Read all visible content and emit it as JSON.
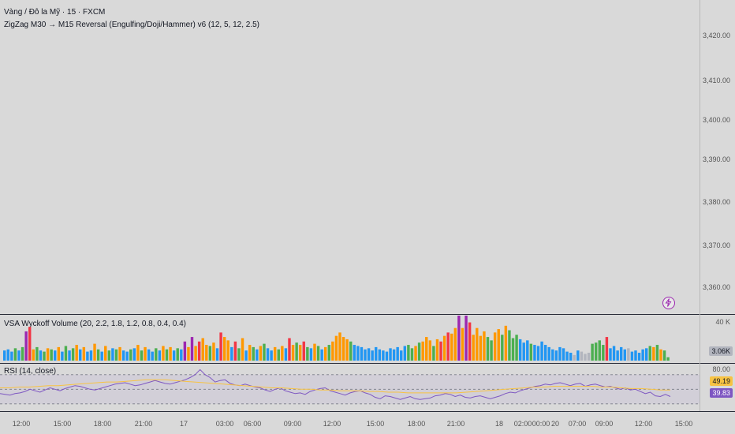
{
  "header": {
    "symbol_line": "Vàng / Đô la Mỹ · 15 · FXCM",
    "indicator_line": "ZigZag M30 → M15 Reversal (Engulfing/Doji/Hammer) v6 (12, 5, 12, 2.5)"
  },
  "price_axis": [
    "3,420.00",
    "3,410.00",
    "3,400.00",
    "3,390.00",
    "3,380.00",
    "3,370.00",
    "3,360.00"
  ],
  "volume_pane": {
    "title": "VSA Wyckoff Volume (20, 2.2, 1.8, 1.2, 0.8, 0.4, 0.4)",
    "axis_label": "40 K",
    "last_value": "3.06K",
    "colors": {
      "blue": "#2196f3",
      "green": "#4caf50",
      "orange": "#ff9800",
      "red": "#f23645",
      "purple": "#9c27b0",
      "grey": "#b2b5be"
    }
  },
  "rsi_pane": {
    "title": "RSI (14, close)",
    "upper_label": "80.00",
    "ma_value": "49.19",
    "rsi_value": "39.83",
    "rsi_color": "#7e57c2",
    "ma_color": "#f7c343"
  },
  "time_axis": [
    "12:00",
    "15:00",
    "18:00",
    "21:00",
    "17",
    "03:00",
    "06:00",
    "09:00",
    "12:00",
    "15:00",
    "18:00",
    "21:00",
    "18",
    "02:00",
    "00:00",
    "20",
    "07:00",
    "09:00",
    "12:00",
    "15:00"
  ],
  "chart_data": [
    {
      "type": "bar",
      "title": "VSA Wyckoff Volume (20, 2.2, 1.8, 1.2, 0.8, 0.4, 0.4)",
      "ylim": [
        0,
        40000
      ],
      "series": [
        {
          "values": [
            9,
            10,
            8,
            11,
            9,
            12,
            26,
            30,
            10,
            12,
            9,
            8,
            11,
            10,
            9,
            12,
            8,
            13,
            9,
            11,
            14,
            10,
            12,
            8,
            9,
            15,
            10,
            8,
            13,
            9,
            11,
            10,
            12,
            9,
            8,
            10,
            11,
            14,
            9,
            12,
            10,
            8,
            11,
            9,
            13,
            10,
            12,
            9,
            11,
            10,
            17,
            12,
            21,
            13,
            17,
            20,
            14,
            13,
            16,
            11,
            25,
            21,
            18,
            12,
            17,
            11,
            20,
            9,
            14,
            12,
            10,
            13,
            15,
            11,
            9,
            12,
            10,
            13,
            11,
            20,
            14,
            16,
            14,
            17,
            12,
            11,
            15,
            13,
            10,
            12,
            14,
            17,
            22,
            25,
            21,
            19,
            17,
            14,
            13,
            12,
            10,
            11,
            9,
            12,
            10,
            9,
            8,
            11,
            10,
            12,
            9,
            13,
            14,
            11,
            13,
            16,
            17,
            21,
            18,
            13,
            19,
            17,
            22,
            25,
            24,
            29,
            40,
            29,
            40,
            34,
            23,
            29,
            22,
            26,
            21,
            18,
            25,
            28,
            23,
            31,
            27,
            20,
            23,
            19,
            16,
            18,
            15,
            14,
            13,
            17,
            14,
            12,
            10,
            9,
            12,
            11,
            8,
            7,
            5,
            9,
            8,
            6,
            7,
            15,
            16,
            18,
            14,
            21,
            11,
            13,
            9,
            12,
            10,
            11,
            8,
            9,
            7,
            10,
            11,
            13,
            12,
            14,
            10,
            9,
            3
          ],
          "colors": [
            "b",
            "b",
            "b",
            "g",
            "b",
            "g",
            "p",
            "r",
            "o",
            "g",
            "b",
            "g",
            "o",
            "g",
            "b",
            "o",
            "b",
            "g",
            "b",
            "g",
            "o",
            "b",
            "o",
            "b",
            "b",
            "o",
            "g",
            "b",
            "o",
            "g",
            "b",
            "g",
            "o",
            "b",
            "b",
            "g",
            "b",
            "o",
            "g",
            "o",
            "b",
            "b",
            "g",
            "b",
            "o",
            "g",
            "o",
            "b",
            "g",
            "b",
            "p",
            "o",
            "p",
            "o",
            "r",
            "o",
            "o",
            "g",
            "o",
            "b",
            "r",
            "o",
            "o",
            "b",
            "r",
            "g",
            "o",
            "b",
            "o",
            "g",
            "b",
            "o",
            "g",
            "b",
            "b",
            "o",
            "g",
            "o",
            "b",
            "r",
            "o",
            "g",
            "o",
            "r",
            "g",
            "b",
            "o",
            "g",
            "b",
            "o",
            "g",
            "o",
            "o",
            "o",
            "o",
            "o",
            "g",
            "b",
            "b",
            "b",
            "b",
            "b",
            "b",
            "b",
            "b",
            "b",
            "b",
            "b",
            "b",
            "b",
            "b",
            "b",
            "g",
            "g",
            "o",
            "g",
            "o",
            "o",
            "o",
            "g",
            "o",
            "r",
            "o",
            "r",
            "o",
            "o",
            "p",
            "o",
            "p",
            "r",
            "o",
            "o",
            "o",
            "o",
            "g",
            "g",
            "o",
            "o",
            "g",
            "o",
            "g",
            "g",
            "g",
            "b",
            "b",
            "b",
            "g",
            "b",
            "b",
            "b",
            "b",
            "b",
            "b",
            "b",
            "b",
            "b",
            "b",
            "b",
            "x",
            "b",
            "x",
            "x",
            "x",
            "g",
            "g",
            "g",
            "g",
            "r",
            "b",
            "b",
            "b",
            "b",
            "b",
            "x",
            "b",
            "b",
            "b",
            "b",
            "b",
            "g",
            "o",
            "g",
            "o",
            "g",
            "g"
          ]
        }
      ]
    },
    {
      "type": "line",
      "title": "RSI (14, close)",
      "ylim": [
        20,
        85
      ],
      "series": [
        {
          "name": "RSI",
          "values": [
            44,
            43,
            42,
            44,
            45,
            47,
            50,
            48,
            46,
            49,
            52,
            50,
            48,
            51,
            53,
            55,
            54,
            52,
            50,
            49,
            51,
            53,
            55,
            57,
            58,
            59,
            57,
            55,
            56,
            58,
            60,
            62,
            60,
            58,
            57,
            59,
            61,
            63,
            66,
            70,
            77,
            70,
            66,
            60,
            62,
            63,
            58,
            56,
            55,
            57,
            55,
            53,
            52,
            49,
            47,
            50,
            52,
            48,
            46,
            44,
            45,
            43,
            47,
            49,
            51,
            52,
            48,
            46,
            44,
            42,
            45,
            47,
            48,
            45,
            43,
            39,
            37,
            41,
            40,
            38,
            36,
            38,
            40,
            37,
            36,
            37,
            38,
            41,
            42,
            44,
            43,
            40,
            42,
            39,
            38,
            40,
            41,
            39,
            37,
            39,
            41,
            44,
            46,
            45,
            48,
            50,
            52,
            54,
            55,
            57,
            56,
            58,
            59,
            57,
            55,
            57,
            58,
            54,
            56,
            57,
            55,
            53,
            54,
            52,
            50,
            52,
            49,
            50,
            47,
            44,
            46,
            41,
            40,
            43,
            40
          ],
          "color": "#7e57c2"
        },
        {
          "name": "MA",
          "values": [
            52,
            52,
            53,
            53,
            54,
            55,
            55,
            56,
            57,
            58,
            59,
            60,
            60,
            61,
            62,
            63,
            63,
            63,
            62,
            61,
            60,
            59,
            58,
            57,
            56,
            55,
            54,
            53,
            52,
            52,
            51,
            50,
            50,
            49,
            49,
            48,
            48,
            48,
            47,
            47,
            46,
            46,
            45,
            45,
            45,
            45,
            45,
            45,
            46,
            47,
            48,
            49,
            50,
            51,
            52,
            53,
            53,
            54,
            54,
            54,
            54,
            54,
            53,
            53,
            52,
            51,
            51,
            50,
            49,
            49
          ],
          "color": "#f7c343"
        }
      ]
    }
  ]
}
